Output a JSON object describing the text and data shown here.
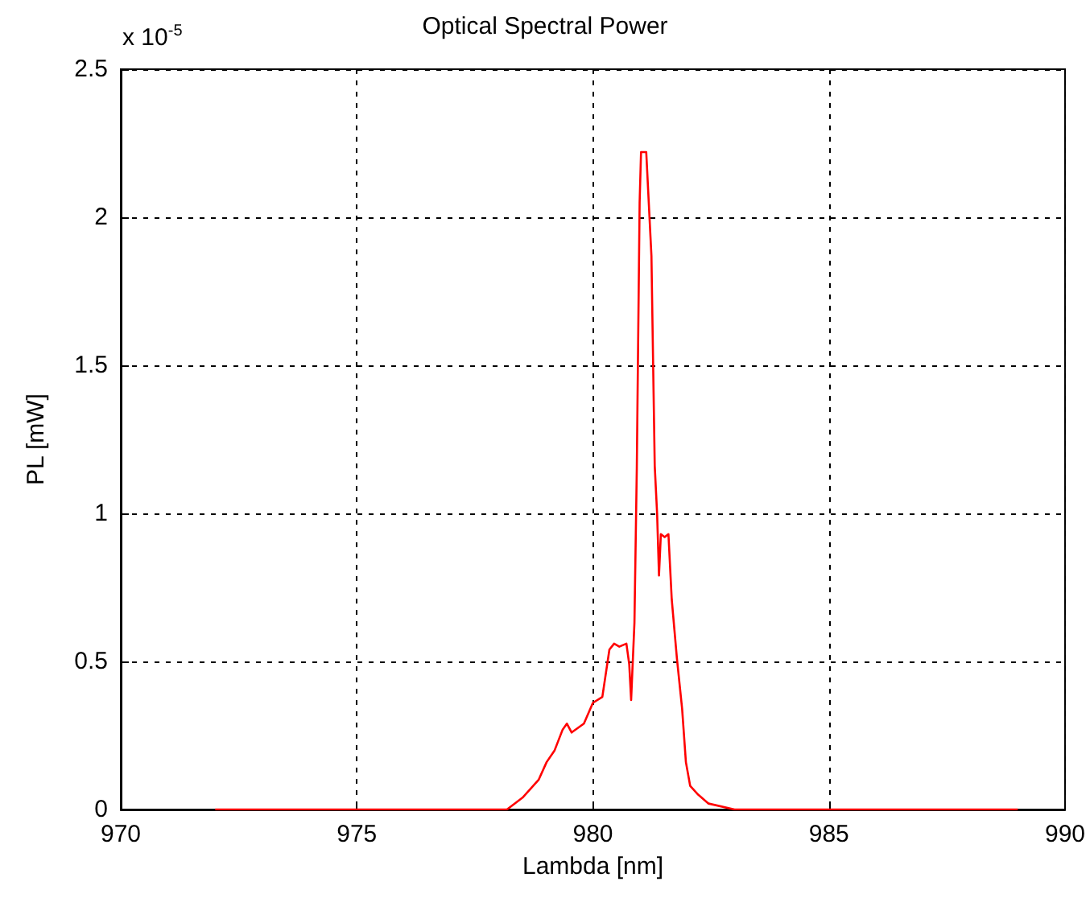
{
  "chart_data": {
    "type": "line",
    "title": "Optical Spectral Power",
    "xlabel": "Lambda [nm]",
    "ylabel": "PL [mW]",
    "annotations": [
      "x 10$^{-5}$"
    ],
    "x": [
      972,
      977.7,
      978.18,
      978.51,
      978.85,
      979.02,
      979.19,
      979.36,
      979.45,
      979.55,
      979.81,
      980.0,
      980.2,
      980.35,
      980.45,
      980.56,
      980.71,
      980.77,
      980.81,
      980.88,
      980.93,
      980.99,
      981.02,
      981.13,
      981.24,
      981.31,
      981.36,
      981.4,
      981.44,
      981.52,
      981.6,
      981.67,
      981.78,
      981.89,
      981.97,
      982.06,
      982.23,
      982.45,
      983,
      989
    ],
    "series": [
      {
        "color": "#ff0000",
        "values": [
          0,
          0,
          0,
          0.04,
          0.1,
          0.16,
          0.2,
          0.27,
          0.29,
          0.26,
          0.29,
          0.36,
          0.38,
          0.54,
          0.56,
          0.55,
          0.56,
          0.49,
          0.37,
          0.63,
          1.15,
          2.05,
          2.22,
          2.22,
          1.87,
          1.16,
          1.0,
          0.79,
          0.93,
          0.92,
          0.93,
          0.71,
          0.51,
          0.34,
          0.16,
          0.08,
          0.05,
          0.02,
          0,
          0
        ]
      }
    ],
    "xlim": [
      970,
      990
    ],
    "xticks": [
      970,
      975,
      980,
      985,
      990
    ],
    "ylim": [
      0,
      2.5
    ],
    "yticks": [
      0,
      0.5,
      1,
      1.5,
      2,
      2.5
    ],
    "grid": true
  }
}
